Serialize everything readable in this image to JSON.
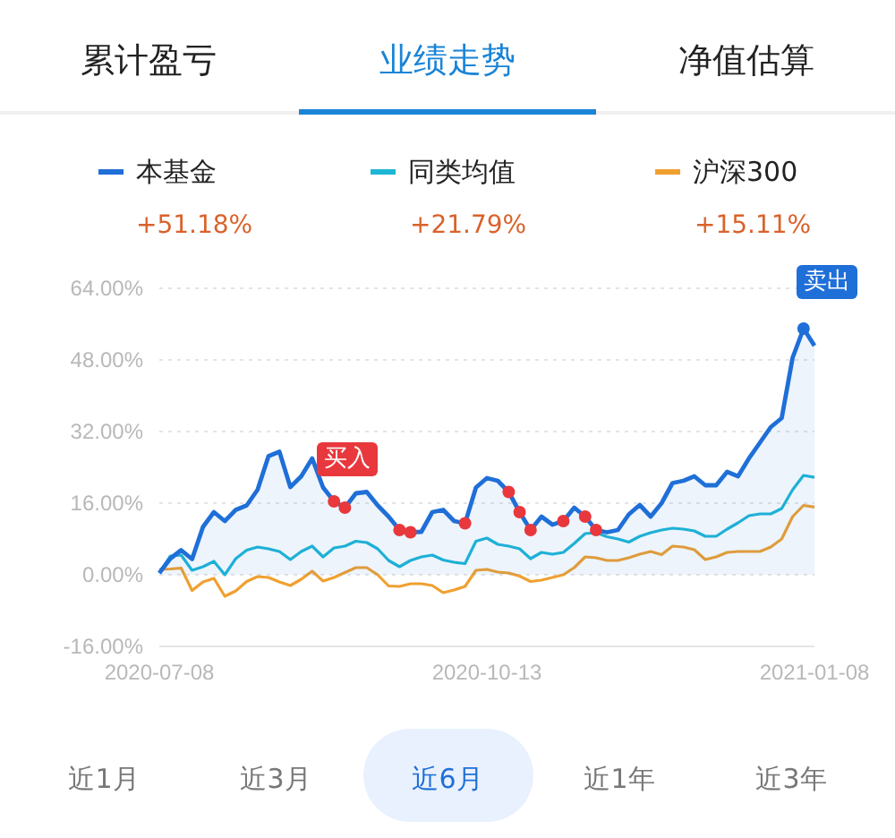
{
  "chart_data": {
    "type": "line",
    "categories": [
      "2020-07-08",
      null,
      null,
      null,
      null,
      null,
      null,
      null,
      null,
      null,
      null,
      null,
      null,
      null,
      null,
      null,
      null,
      null,
      null,
      null,
      null,
      null,
      null,
      null,
      null,
      null,
      null,
      null,
      null,
      null,
      "2020-10-13",
      null,
      null,
      null,
      null,
      null,
      null,
      null,
      null,
      null,
      null,
      null,
      null,
      null,
      null,
      null,
      null,
      null,
      null,
      null,
      null,
      null,
      null,
      null,
      null,
      null,
      null,
      null,
      null,
      null,
      "2021-01-08"
    ],
    "series": [
      {
        "name": "本基金",
        "type": "area",
        "color": "#1f6fd8",
        "values": [
          0.4,
          3.6,
          5.5,
          3.5,
          10.7,
          14,
          12,
          14.5,
          15.5,
          19,
          26.5,
          27.5,
          19.6,
          22,
          26,
          19.5,
          16.4,
          15,
          18.2,
          18.5,
          15.5,
          13,
          10,
          9.5,
          9.6,
          14,
          14.5,
          12,
          11.5,
          19.5,
          21.6,
          21,
          18.5,
          14,
          10,
          13,
          11.2,
          12,
          15,
          13,
          10,
          9.5,
          10,
          13.5,
          15.6,
          13,
          16,
          20.5,
          21,
          22,
          20,
          20,
          23,
          22,
          26,
          29.5,
          33,
          35,
          48.5,
          55,
          51.18
        ]
      },
      {
        "name": "同类均值",
        "color": "#1fb6d6",
        "values": [
          0.4,
          4.2,
          4.4,
          1,
          1.8,
          3,
          0,
          3.6,
          5.5,
          6.2,
          5.8,
          5.2,
          3.4,
          5.2,
          6.4,
          4,
          6,
          6.4,
          7.5,
          7.2,
          5.8,
          3.2,
          1.8,
          3.2,
          4,
          4.4,
          3.3,
          2.8,
          2.5,
          7.5,
          8.2,
          6.8,
          6.4,
          5.8,
          3.6,
          5,
          4.6,
          5,
          7,
          9.2,
          9.4,
          8.5,
          8,
          7.3,
          8.6,
          9.4,
          10,
          10.4,
          10.2,
          9.8,
          8.6,
          8.6,
          10.2,
          11.6,
          13.2,
          13.6,
          13.6,
          14.8,
          19,
          22.2,
          21.79
        ]
      },
      {
        "name": "沪深300",
        "color": "#f0a030",
        "values": [
          1.2,
          1.3,
          1.5,
          -3.5,
          -1.6,
          -0.8,
          -4.8,
          -3.6,
          -1.5,
          -0.4,
          -0.6,
          -1.6,
          -2.4,
          -1,
          0.8,
          -1.4,
          -0.6,
          0.5,
          1.6,
          1.6,
          0,
          -2.5,
          -2.6,
          -2,
          -2,
          -2.4,
          -4,
          -3.4,
          -2.6,
          1,
          1.2,
          0.6,
          0.4,
          -0.3,
          -1.5,
          -1.2,
          -0.6,
          0,
          1.6,
          4,
          3.8,
          3.2,
          3.2,
          3.8,
          4.6,
          5.2,
          4.5,
          6.4,
          6.2,
          5.6,
          3.4,
          4,
          5,
          5.2,
          5.2,
          5.2,
          6.2,
          8,
          13,
          15.5,
          15.11
        ]
      },
      {
        "type": "scatter",
        "color": "#e8383d",
        "values": [
          null,
          null,
          null,
          null,
          null,
          null,
          null,
          null,
          null,
          null,
          null,
          null,
          null,
          null,
          null,
          null,
          16.4,
          15,
          null,
          null,
          null,
          null,
          10,
          9.5,
          null,
          null,
          null,
          null,
          11.5,
          null,
          null,
          null,
          18.5,
          14,
          10,
          null,
          null,
          12,
          null,
          13,
          10,
          null,
          null,
          null,
          null,
          null,
          null,
          null,
          null,
          null,
          null,
          null,
          null,
          null,
          null,
          null,
          null,
          null,
          null,
          null,
          null
        ]
      },
      {
        "type": "scatter",
        "color": "#1f6fd8",
        "values": [
          null,
          null,
          null,
          null,
          null,
          null,
          null,
          null,
          null,
          null,
          null,
          null,
          null,
          null,
          null,
          null,
          null,
          null,
          null,
          null,
          null,
          null,
          null,
          null,
          null,
          null,
          null,
          null,
          null,
          null,
          null,
          null,
          null,
          null,
          null,
          null,
          null,
          null,
          null,
          null,
          null,
          null,
          null,
          null,
          null,
          null,
          null,
          null,
          null,
          null,
          null,
          null,
          null,
          null,
          null,
          null,
          null,
          null,
          null,
          55,
          null
        ]
      }
    ],
    "ylim": [
      -16,
      64
    ],
    "yticks": [
      {
        "value": -16,
        "label": "-16.00%"
      },
      {
        "value": 0,
        "label": "0.00%"
      },
      {
        "value": 16,
        "label": "16.00%"
      },
      {
        "value": 32,
        "label": "32.00%"
      },
      {
        "value": 48,
        "label": "48.00%"
      },
      {
        "value": 64,
        "label": "64.00%"
      }
    ],
    "grid": "y",
    "legend": "top",
    "annotations": [
      "累计盈亏",
      "业绩走势",
      "净值估算",
      "+51.18%",
      "+21.79%",
      "+15.11%",
      "买入",
      "卖出",
      "近1月",
      "近3月",
      "近6月",
      "近1年",
      "近3年"
    ]
  }
}
